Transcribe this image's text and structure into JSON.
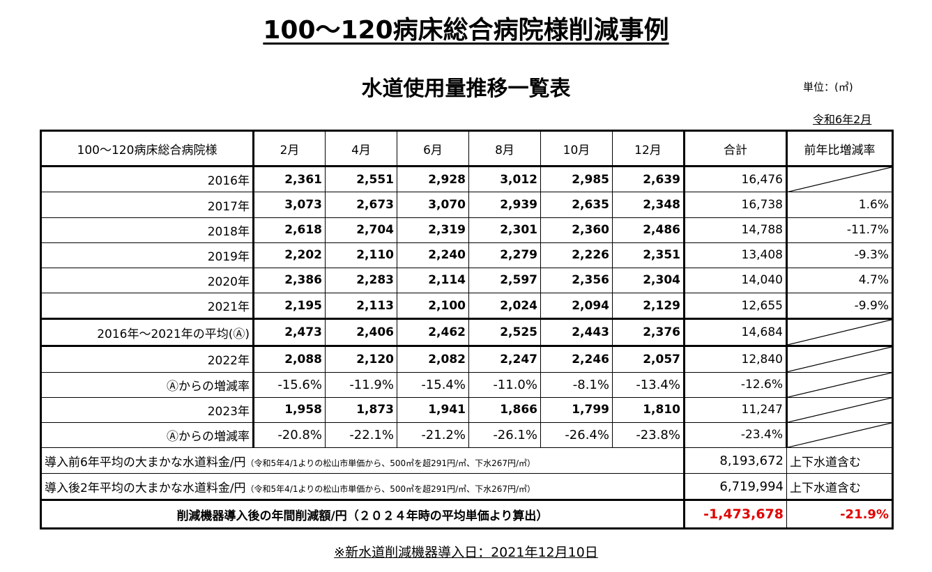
{
  "title": "100～120病床総合病院様削減事例",
  "subtitle": "水道使用量推移一覧表",
  "unit": "単位：(㎥)",
  "date": "令和6年2月",
  "header": {
    "label": "100～120病床総合病院様",
    "months": [
      "2月",
      "4月",
      "6月",
      "8月",
      "10月",
      "12月"
    ],
    "total": "合計",
    "rate": "前年比増減率"
  },
  "rows": [
    {
      "label": "2016年",
      "values": [
        "2,361",
        "2,551",
        "2,928",
        "3,012",
        "2,985",
        "2,639"
      ],
      "total": "16,476",
      "rate": ""
    },
    {
      "label": "2017年",
      "values": [
        "3,073",
        "2,673",
        "3,070",
        "2,939",
        "2,635",
        "2,348"
      ],
      "total": "16,738",
      "rate": "1.6%"
    },
    {
      "label": "2018年",
      "values": [
        "2,618",
        "2,704",
        "2,319",
        "2,301",
        "2,360",
        "2,486"
      ],
      "total": "14,788",
      "rate": "-11.7%"
    },
    {
      "label": "2019年",
      "values": [
        "2,202",
        "2,110",
        "2,240",
        "2,279",
        "2,226",
        "2,351"
      ],
      "total": "13,408",
      "rate": "-9.3%"
    },
    {
      "label": "2020年",
      "values": [
        "2,386",
        "2,283",
        "2,114",
        "2,597",
        "2,356",
        "2,304"
      ],
      "total": "14,040",
      "rate": "4.7%"
    },
    {
      "label": "2021年",
      "values": [
        "2,195",
        "2,113",
        "2,100",
        "2,024",
        "2,094",
        "2,129"
      ],
      "total": "12,655",
      "rate": "-9.9%"
    }
  ],
  "average": {
    "label": "2016年～2021年の平均(Ⓐ)",
    "values": [
      "2,473",
      "2,406",
      "2,462",
      "2,525",
      "2,443",
      "2,376"
    ],
    "total": "14,684"
  },
  "after": [
    {
      "label": "2022年",
      "values": [
        "2,088",
        "2,120",
        "2,082",
        "2,247",
        "2,246",
        "2,057"
      ],
      "total": "12,840"
    },
    {
      "label": "Ⓐからの増減率",
      "values": [
        "-15.6%",
        "-11.9%",
        "-15.4%",
        "-11.0%",
        "-8.1%",
        "-13.4%"
      ],
      "total": "-12.6%"
    },
    {
      "label": "2023年",
      "values": [
        "1,958",
        "1,873",
        "1,941",
        "1,866",
        "1,799",
        "1,810"
      ],
      "total": "11,247"
    },
    {
      "label": "Ⓐからの増減率",
      "values": [
        "-20.8%",
        "-22.1%",
        "-21.2%",
        "-26.1%",
        "-26.4%",
        "-23.8%"
      ],
      "total": "-23.4%"
    }
  ],
  "summary": [
    {
      "label": "導入前6年平均の大まかな水道料金/円",
      "note": "（令和5年4/1よりの松山市単価から、500㎥を超291円/㎥、下水267円/㎥）",
      "value": "8,193,672",
      "remark": "上下水道含む"
    },
    {
      "label": "導入後2年平均の大まかな水道料金/円",
      "note": "（令和5年4/1よりの松山市単価から、500㎥を超291円/㎥、下水267円/㎥）",
      "value": "6,719,994",
      "remark": "上下水道含む"
    }
  ],
  "final": {
    "label": "削減機器導入後の年間削減額/円（２０２４年時の平均単価より算出）",
    "value": "-1,473,678",
    "rate": "-21.9%"
  },
  "footer": "※新水道削減機器導入日：2021年12月10日",
  "colors": {
    "highlight": "#e00000"
  }
}
